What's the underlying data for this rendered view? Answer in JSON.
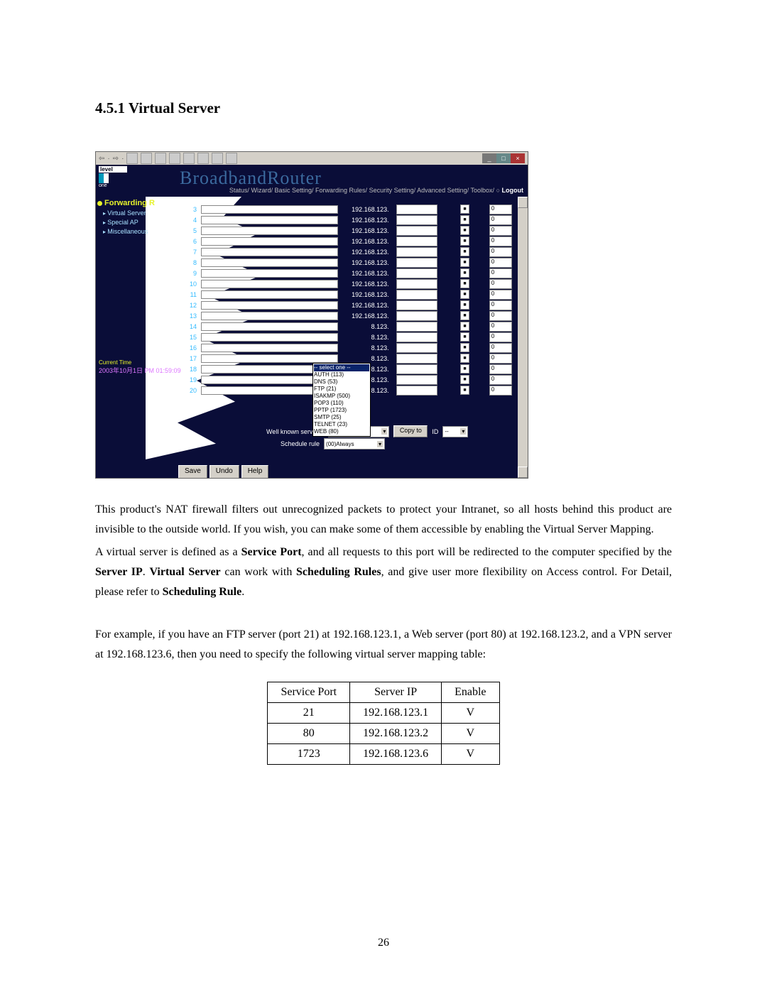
{
  "section_title": "4.5.1 Virtual Server",
  "page_number": "26",
  "screenshot": {
    "brand": "BroadbandRouter",
    "logo_top": "level",
    "logo_bottom": "one",
    "nav_items": [
      "Status/",
      "Wizard/",
      "Basic Setting/",
      "Forwarding Rules/",
      "Security Setting/",
      "Advanced Setting/",
      "Toolbox/"
    ],
    "logout": "Logout",
    "side_title": "Forwarding R",
    "side_items": [
      "Virtual Server",
      "Special AP",
      "Miscellaneous"
    ],
    "current_time_label": "Current Time",
    "current_time": "2003年10月1日 PM 01:59:09",
    "default_ip_prefix": "192.168.123.",
    "short_ip_suffix": "8.123.",
    "row_count": 20,
    "use_value": "0",
    "dropdown": {
      "items": [
        "-- select one --",
        "AUTH (113)",
        "DNS (53)",
        "FTP (21)",
        "ISAKMP (500)",
        "POP3 (110)",
        "PPTP (1723)",
        "SMTP (25)",
        "TELNET (23)",
        "WEB (80)"
      ],
      "highlight_index": 0
    },
    "well_known_label": "Well known services",
    "well_known_value": "DNS (53)",
    "copy_label": "Copy to",
    "copy_id": "ID",
    "schedule_label": "Schedule rule",
    "schedule_value": "(00)Always",
    "buttons": [
      "Save",
      "Undo",
      "Help"
    ]
  },
  "paragraphs": {
    "p1": "This product's NAT firewall filters out unrecognized packets to protect your Intranet, so all hosts behind this product are invisible to the outside world. If you wish, you can make some of them accessible by enabling the Virtual Server Mapping.",
    "p2a": "A virtual server is defined as a ",
    "p2b": "Service Port",
    "p2c": ", and all requests to this port will be redirected to the computer specified by the ",
    "p2d": "Server IP",
    "p2e": ".   ",
    "p2f": "Virtual Server",
    "p2g": " can work with ",
    "p2h": "Scheduling Rules",
    "p2i": ", and give user more flexibility on Access control. For Detail, please refer to ",
    "p2j": "Scheduling Rule",
    "p2k": ".",
    "p3": "For example, if you have an FTP server (port 21) at 192.168.123.1, a Web server (port 80) at 192.168.123.2, and a VPN server at 192.168.123.6, then you need to specify the following virtual server mapping table:"
  },
  "example_table": {
    "headers": [
      "Service Port",
      "Server IP",
      "Enable"
    ],
    "rows": [
      [
        "21",
        "192.168.123.1",
        "V"
      ],
      [
        "80",
        "192.168.123.2",
        "V"
      ],
      [
        "1723",
        "192.168.123.6",
        "V"
      ]
    ]
  },
  "colors": {
    "router_bg": "#0a0d38",
    "accent": "#e7f32b",
    "link": "#a8e0ff",
    "button_bg": "#d4d0c8"
  }
}
